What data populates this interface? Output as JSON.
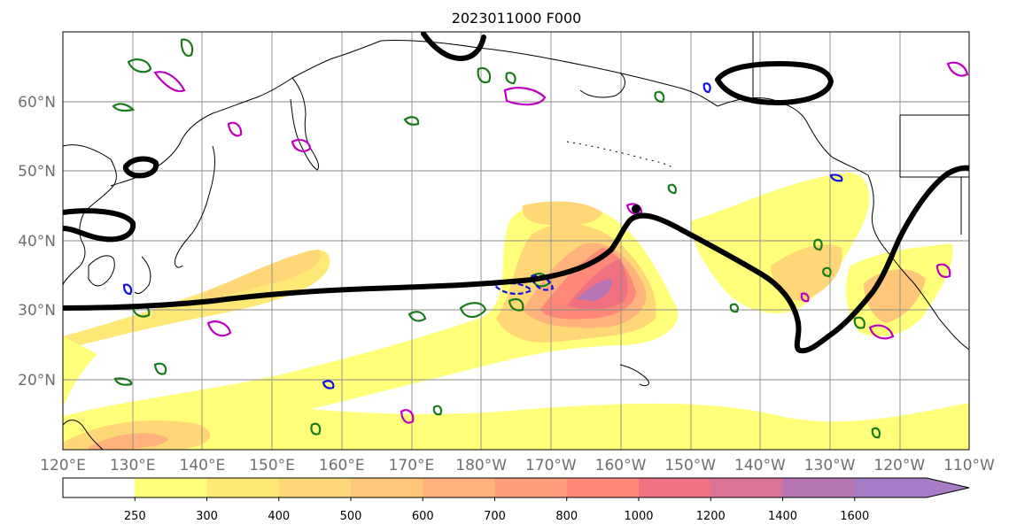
{
  "title": "2023011000 F000",
  "lat_labels": [
    "60°N",
    "50°N",
    "40°N",
    "30°N",
    "20°N"
  ],
  "lon_labels": [
    "120°E",
    "130°E",
    "140°E",
    "150°E",
    "160°E",
    "170°E",
    "180°W",
    "170°W",
    "160°W",
    "150°W",
    "140°W",
    "130°W",
    "120°W",
    "110°W"
  ],
  "colorbar": {
    "ticks": [
      "250",
      "300",
      "400",
      "500",
      "600",
      "700",
      "800",
      "1000",
      "1200",
      "1400",
      "1600"
    ],
    "colors": [
      "#ffffff",
      "#ffff7a",
      "#ffe875",
      "#ffd777",
      "#ffc77a",
      "#ffb27b",
      "#ff9e7a",
      "#ff8878",
      "#f07282",
      "#d97496",
      "#b676b4",
      "#a67cc6"
    ]
  }
}
